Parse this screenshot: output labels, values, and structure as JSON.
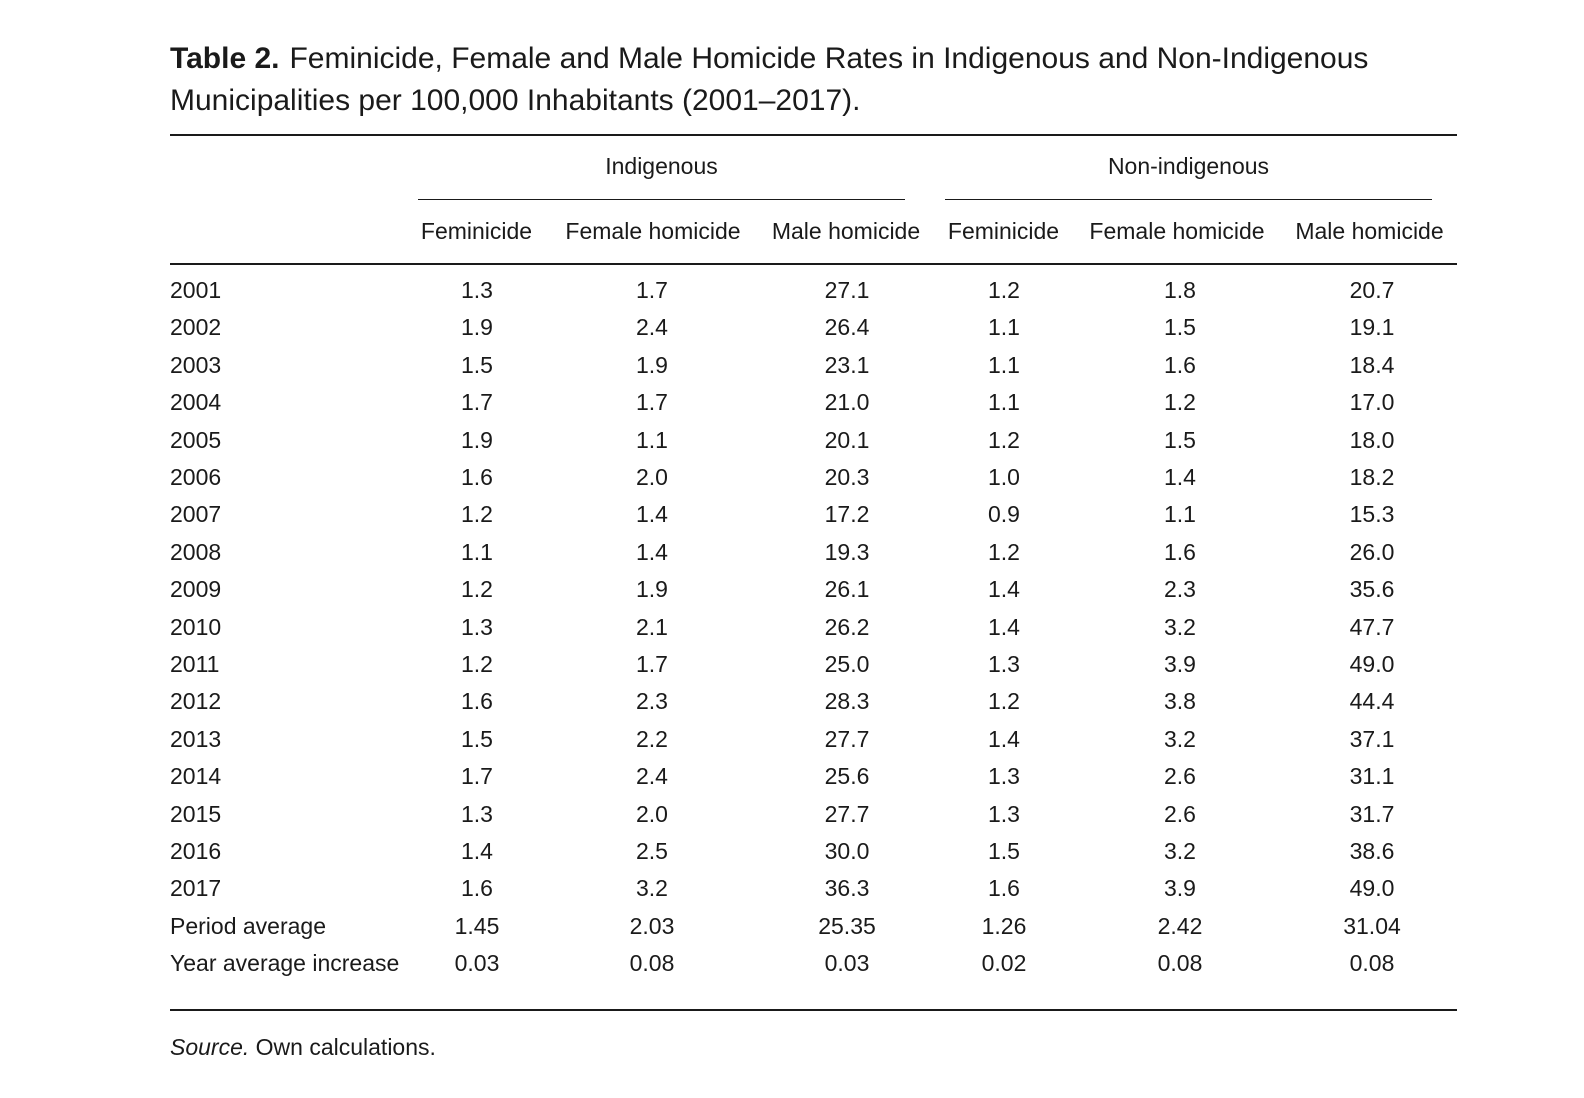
{
  "caption": {
    "label": "Table 2.",
    "text": "Feminicide, Female and Male Homicide Rates in Indigenous and Non-Indigenous Municipalities per 100,000 Inhabitants (2001–2017)."
  },
  "groups": [
    "Indigenous",
    "Non-indigenous"
  ],
  "columns": [
    "Feminicide",
    "Female homicide",
    "Male homicide",
    "Feminicide",
    "Female homicide",
    "Male homicide"
  ],
  "rows": [
    {
      "label": "2001",
      "values": [
        "1.3",
        "1.7",
        "27.1",
        "1.2",
        "1.8",
        "20.7"
      ]
    },
    {
      "label": "2002",
      "values": [
        "1.9",
        "2.4",
        "26.4",
        "1.1",
        "1.5",
        "19.1"
      ]
    },
    {
      "label": "2003",
      "values": [
        "1.5",
        "1.9",
        "23.1",
        "1.1",
        "1.6",
        "18.4"
      ]
    },
    {
      "label": "2004",
      "values": [
        "1.7",
        "1.7",
        "21.0",
        "1.1",
        "1.2",
        "17.0"
      ]
    },
    {
      "label": "2005",
      "values": [
        "1.9",
        "1.1",
        "20.1",
        "1.2",
        "1.5",
        "18.0"
      ]
    },
    {
      "label": "2006",
      "values": [
        "1.6",
        "2.0",
        "20.3",
        "1.0",
        "1.4",
        "18.2"
      ]
    },
    {
      "label": "2007",
      "values": [
        "1.2",
        "1.4",
        "17.2",
        "0.9",
        "1.1",
        "15.3"
      ]
    },
    {
      "label": "2008",
      "values": [
        "1.1",
        "1.4",
        "19.3",
        "1.2",
        "1.6",
        "26.0"
      ]
    },
    {
      "label": "2009",
      "values": [
        "1.2",
        "1.9",
        "26.1",
        "1.4",
        "2.3",
        "35.6"
      ]
    },
    {
      "label": "2010",
      "values": [
        "1.3",
        "2.1",
        "26.2",
        "1.4",
        "3.2",
        "47.7"
      ]
    },
    {
      "label": "2011",
      "values": [
        "1.2",
        "1.7",
        "25.0",
        "1.3",
        "3.9",
        "49.0"
      ]
    },
    {
      "label": "2012",
      "values": [
        "1.6",
        "2.3",
        "28.3",
        "1.2",
        "3.8",
        "44.4"
      ]
    },
    {
      "label": "2013",
      "values": [
        "1.5",
        "2.2",
        "27.7",
        "1.4",
        "3.2",
        "37.1"
      ]
    },
    {
      "label": "2014",
      "values": [
        "1.7",
        "2.4",
        "25.6",
        "1.3",
        "2.6",
        "31.1"
      ]
    },
    {
      "label": "2015",
      "values": [
        "1.3",
        "2.0",
        "27.7",
        "1.3",
        "2.6",
        "31.7"
      ]
    },
    {
      "label": "2016",
      "values": [
        "1.4",
        "2.5",
        "30.0",
        "1.5",
        "3.2",
        "38.6"
      ]
    },
    {
      "label": "2017",
      "values": [
        "1.6",
        "3.2",
        "36.3",
        "1.6",
        "3.9",
        "49.0"
      ]
    },
    {
      "label": "Period average",
      "values": [
        "1.45",
        "2.03",
        "25.35",
        "1.26",
        "2.42",
        "31.04"
      ]
    },
    {
      "label": "Year average increase",
      "values": [
        "0.03",
        "0.08",
        "0.03",
        "0.02",
        "0.08",
        "0.08"
      ]
    }
  ],
  "source": {
    "label": "Source.",
    "text": " Own calculations."
  }
}
